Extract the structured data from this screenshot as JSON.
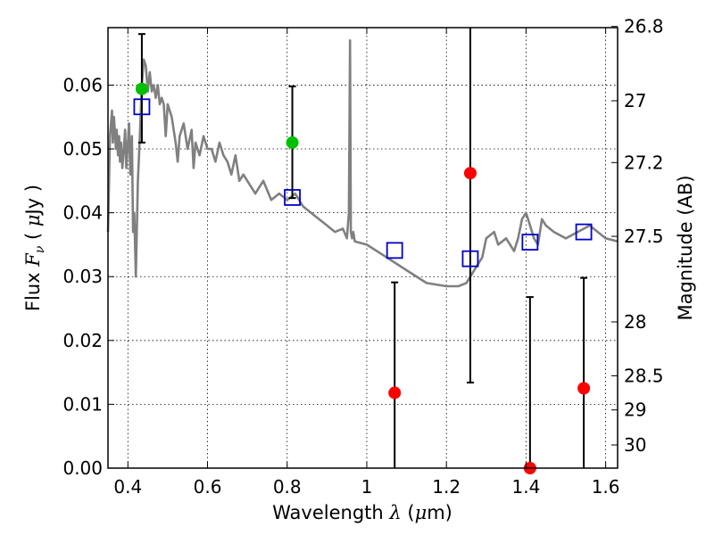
{
  "chart_data": {
    "type": "scatter",
    "xlabel": {
      "prefix": "Wavelength ",
      "symbol": "λ",
      "unit_open": " (",
      "unit_mu": "μ",
      "unit_close": "m)"
    },
    "ylabel": {
      "prefix": "Flux ",
      "symbol": "F",
      "sub": "ν",
      "unit_open": " ( ",
      "unit_mu": "μ",
      "unit_close": "Jy )"
    },
    "y2label": "Magnitude (AB)",
    "xlim": [
      0.35,
      1.63
    ],
    "ylim": [
      0.0,
      0.069
    ],
    "x_ticks": [
      0.4,
      0.6,
      0.8,
      1.0,
      1.2,
      1.4,
      1.6
    ],
    "x_tick_labels": [
      "0.4",
      "0.6",
      "0.8",
      "1",
      "1.2",
      "1.4",
      "1.6"
    ],
    "y_ticks": [
      0.0,
      0.01,
      0.02,
      0.03,
      0.04,
      0.05,
      0.06
    ],
    "y_tick_labels": [
      "0.00",
      "0.01",
      "0.02",
      "0.03",
      "0.04",
      "0.05",
      "0.06"
    ],
    "y2_ticks": [
      {
        "mag": 26.8,
        "label": "26.8"
      },
      {
        "mag": 27.0,
        "label": "27"
      },
      {
        "mag": 27.2,
        "label": "27.2"
      },
      {
        "mag": 27.5,
        "label": "27.5"
      },
      {
        "mag": 28.0,
        "label": "28"
      },
      {
        "mag": 28.5,
        "label": "28.5"
      },
      {
        "mag": 29.0,
        "label": "29"
      },
      {
        "mag": 30.0,
        "label": "30"
      }
    ],
    "grid": true,
    "colors": {
      "model": "#808080",
      "square": "#0000cc",
      "green": "#00c000",
      "red": "#ff0000",
      "errorbar": "#000000"
    },
    "series": [
      {
        "kind": "model_sed",
        "x": [
          0.35,
          0.355,
          0.36,
          0.362,
          0.365,
          0.37,
          0.372,
          0.375,
          0.378,
          0.38,
          0.383,
          0.386,
          0.39,
          0.393,
          0.396,
          0.4,
          0.403,
          0.406,
          0.41,
          0.413,
          0.416,
          0.42,
          0.425,
          0.43,
          0.435,
          0.44,
          0.445,
          0.45,
          0.455,
          0.46,
          0.465,
          0.47,
          0.475,
          0.48,
          0.485,
          0.49,
          0.495,
          0.5,
          0.51,
          0.52,
          0.525,
          0.53,
          0.54,
          0.55,
          0.56,
          0.565,
          0.57,
          0.58,
          0.59,
          0.6,
          0.61,
          0.62,
          0.63,
          0.64,
          0.65,
          0.66,
          0.67,
          0.68,
          0.69,
          0.7,
          0.72,
          0.74,
          0.76,
          0.78,
          0.8,
          0.82,
          0.84,
          0.86,
          0.88,
          0.9,
          0.92,
          0.94,
          0.95,
          0.955,
          0.958,
          0.96,
          0.963,
          0.966,
          0.97,
          1.0,
          1.05,
          1.1,
          1.15,
          1.2,
          1.23,
          1.25,
          1.27,
          1.29,
          1.3,
          1.32,
          1.33,
          1.35,
          1.37,
          1.38,
          1.39,
          1.4,
          1.41,
          1.42,
          1.43,
          1.44,
          1.45,
          1.47,
          1.5,
          1.53,
          1.56,
          1.58,
          1.6,
          1.63
        ],
        "y": [
          0.037,
          0.052,
          0.056,
          0.051,
          0.055,
          0.05,
          0.053,
          0.049,
          0.052,
          0.048,
          0.051,
          0.047,
          0.05,
          0.053,
          0.047,
          0.051,
          0.054,
          0.046,
          0.052,
          0.037,
          0.04,
          0.03,
          0.045,
          0.052,
          0.06,
          0.064,
          0.063,
          0.059,
          0.062,
          0.059,
          0.06,
          0.058,
          0.06,
          0.057,
          0.058,
          0.057,
          0.052,
          0.057,
          0.055,
          0.051,
          0.048,
          0.052,
          0.054,
          0.05,
          0.053,
          0.047,
          0.051,
          0.049,
          0.052,
          0.05,
          0.05,
          0.048,
          0.051,
          0.049,
          0.048,
          0.046,
          0.049,
          0.045,
          0.046,
          0.045,
          0.043,
          0.045,
          0.042,
          0.043,
          0.042,
          0.043,
          0.041,
          0.04,
          0.039,
          0.038,
          0.037,
          0.0375,
          0.036,
          0.04,
          0.067,
          0.037,
          0.036,
          0.037,
          0.0355,
          0.035,
          0.033,
          0.031,
          0.029,
          0.0285,
          0.0285,
          0.029,
          0.031,
          0.033,
          0.036,
          0.037,
          0.035,
          0.036,
          0.034,
          0.036,
          0.039,
          0.04,
          0.038,
          0.036,
          0.035,
          0.039,
          0.038,
          0.037,
          0.036,
          0.037,
          0.038,
          0.037,
          0.036,
          0.0355
        ]
      },
      {
        "kind": "model_band_flux",
        "x": [
          0.435,
          0.813,
          1.07,
          1.26,
          1.41,
          1.545
        ],
        "y": [
          0.0566,
          0.0424,
          0.0341,
          0.0328,
          0.0354,
          0.037
        ]
      },
      {
        "kind": "observed_detection",
        "x": [
          0.435,
          0.813
        ],
        "y": [
          0.0594,
          0.051
        ],
        "ylo": [
          0.051,
          0.0423
        ],
        "yhi": [
          0.068,
          0.0598
        ]
      },
      {
        "kind": "observed_nondetection",
        "x": [
          1.07,
          1.26,
          1.41,
          1.545
        ],
        "y": [
          0.0118,
          0.0462,
          0.0,
          0.0125
        ],
        "ylo": [
          0.0,
          0.0134,
          0.0,
          0.0
        ],
        "yhi": [
          0.0291,
          0.069,
          0.0268,
          0.0298
        ]
      }
    ]
  }
}
